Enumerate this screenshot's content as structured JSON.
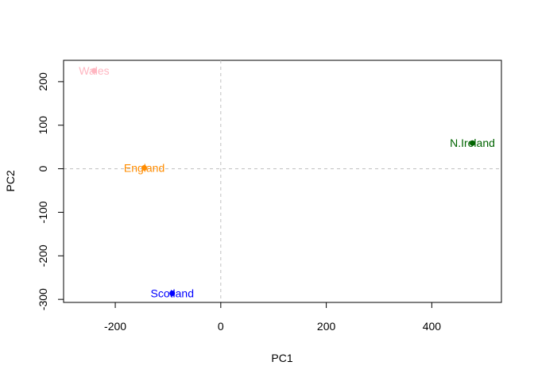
{
  "chart_data": {
    "type": "scatter",
    "title": "",
    "xlabel": "PC1",
    "ylabel": "PC2",
    "xlim": [
      -298,
      532
    ],
    "ylim": [
      -307,
      249
    ],
    "x_ticks": [
      -200,
      0,
      200,
      400
    ],
    "y_ticks": [
      -300,
      -200,
      -100,
      0,
      100,
      200
    ],
    "x_tick_labels": [
      "-200",
      "0",
      "200",
      "400"
    ],
    "y_tick_labels": [
      "-300",
      "-200",
      "-100",
      "0",
      "100",
      "200"
    ],
    "grid": false,
    "reference_lines": [
      {
        "axis": "x",
        "value": 0,
        "style": "dashed",
        "color": "#bebebe"
      },
      {
        "axis": "y",
        "value": 0,
        "style": "dashed",
        "color": "#bebebe"
      }
    ],
    "points": [
      {
        "label": "England",
        "x": -145,
        "y": 2,
        "color": "#ff8c00"
      },
      {
        "label": "Wales",
        "x": -240,
        "y": 225,
        "color": "#ffb6c1"
      },
      {
        "label": "Scotland",
        "x": -92,
        "y": -286,
        "color": "#0000ff"
      },
      {
        "label": "N.Ireland",
        "x": 477,
        "y": 59,
        "color": "#006400"
      }
    ]
  }
}
